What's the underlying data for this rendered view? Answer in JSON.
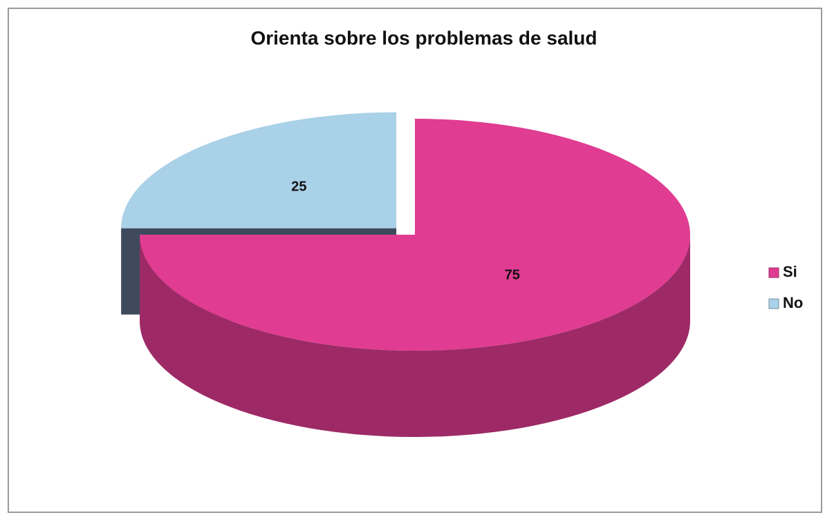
{
  "chart_data": {
    "type": "pie",
    "title": "Orienta sobre los problemas de salud",
    "categories": [
      "Si",
      "No"
    ],
    "values": [
      75,
      25
    ],
    "colors": [
      "#e03c92",
      "#a9d1e7"
    ],
    "legend": "right"
  }
}
